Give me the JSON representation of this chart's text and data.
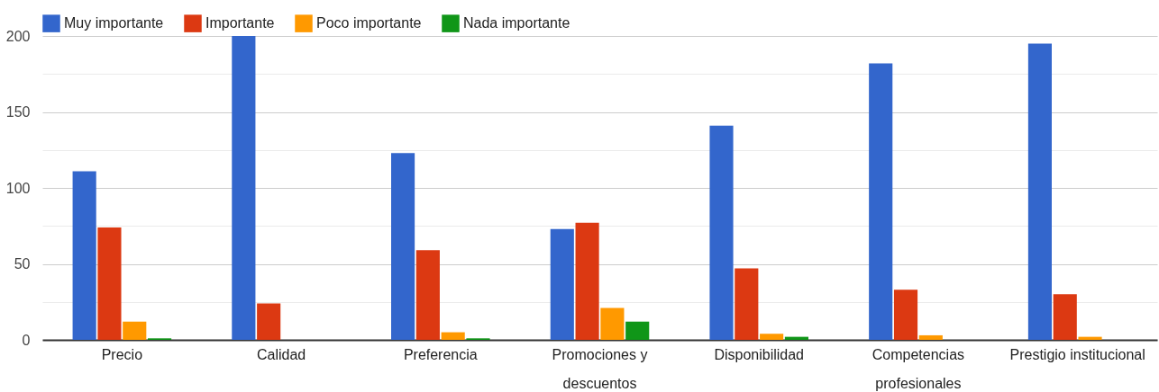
{
  "chart_data": {
    "type": "bar",
    "categories": [
      "Precio",
      "Calidad",
      "Preferencia",
      "Promociones y descuentos",
      "Disponibilidad",
      "Competencias profesionales",
      "Prestigio institucional"
    ],
    "series": [
      {
        "name": "Muy importante",
        "color": "#3366cc",
        "values": [
          111,
          200,
          123,
          73,
          141,
          182,
          195
        ]
      },
      {
        "name": "Importante",
        "color": "#dc3912",
        "values": [
          74,
          24,
          59,
          77,
          47,
          33,
          30
        ]
      },
      {
        "name": "Poco importante",
        "color": "#ff9900",
        "values": [
          12,
          0,
          5,
          21,
          4,
          3,
          2
        ]
      },
      {
        "name": "Nada importante",
        "color": "#109618",
        "values": [
          1,
          0,
          1,
          12,
          2,
          0,
          0
        ]
      }
    ],
    "ylim": [
      0,
      200
    ],
    "yticks": [
      0,
      {
        "value": 25,
        "label": null
      },
      50,
      {
        "value": 75,
        "label": null
      },
      100,
      {
        "value": 125,
        "label": null
      },
      150,
      {
        "value": 175,
        "label": null
      },
      200
    ],
    "grid": "y",
    "legend": "top left"
  }
}
